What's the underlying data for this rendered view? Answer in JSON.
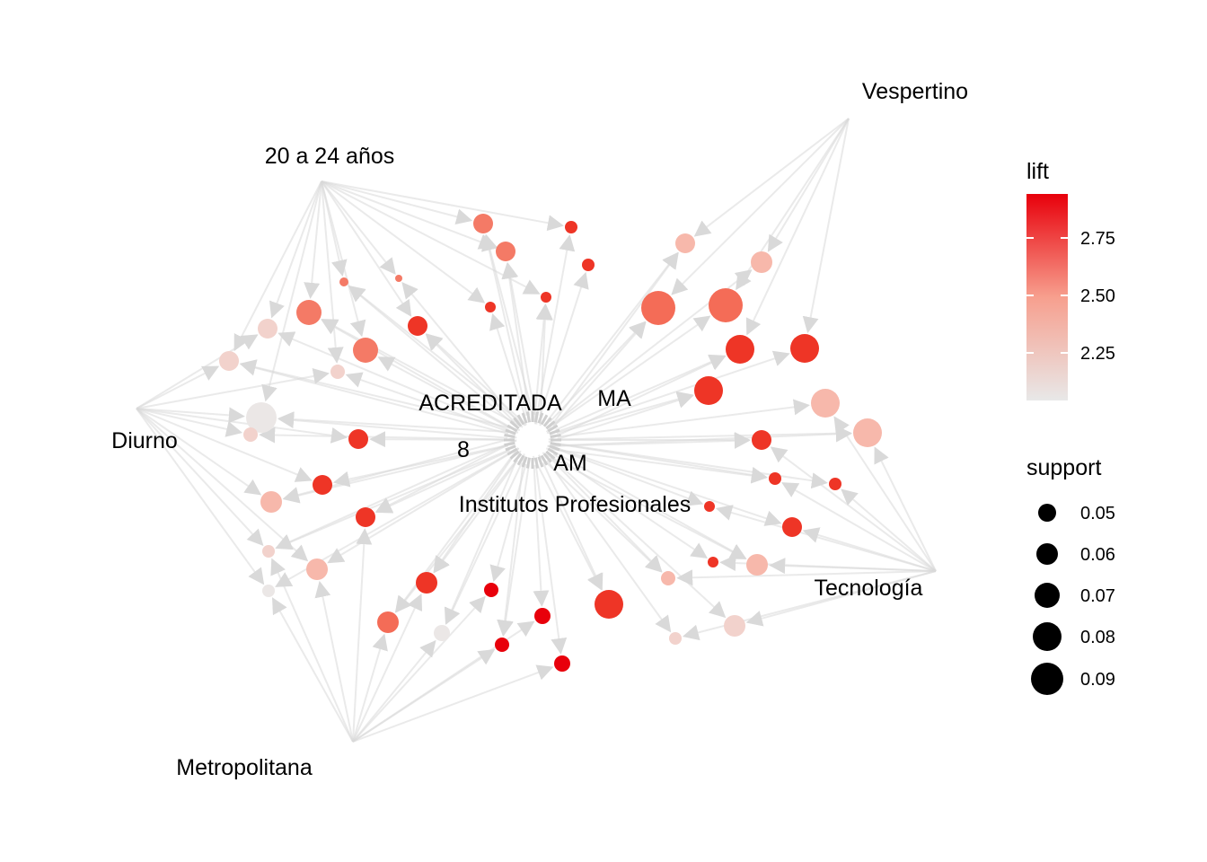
{
  "graph": {
    "items": [
      {
        "label": "Vespertino"
      },
      {
        "label": "20 a 24 años"
      },
      {
        "label": "Diurno"
      },
      {
        "label": "ACREDITADA"
      },
      {
        "label": "MA"
      },
      {
        "label": "8"
      },
      {
        "label": "AM"
      },
      {
        "label": "Institutos Profesionales"
      },
      {
        "label": "Tecnología"
      },
      {
        "label": "Metropolitana"
      }
    ],
    "colors": {
      "edge": "#d9d9d9",
      "lift_low": "#e8e8e8",
      "lift_high": "#e8000b"
    }
  },
  "legend": {
    "lift": {
      "title": "lift",
      "ticks": [
        "2.75",
        "2.50",
        "2.25"
      ]
    },
    "support": {
      "title": "support",
      "ticks": [
        "0.05",
        "0.06",
        "0.07",
        "0.08",
        "0.09"
      ]
    }
  }
}
